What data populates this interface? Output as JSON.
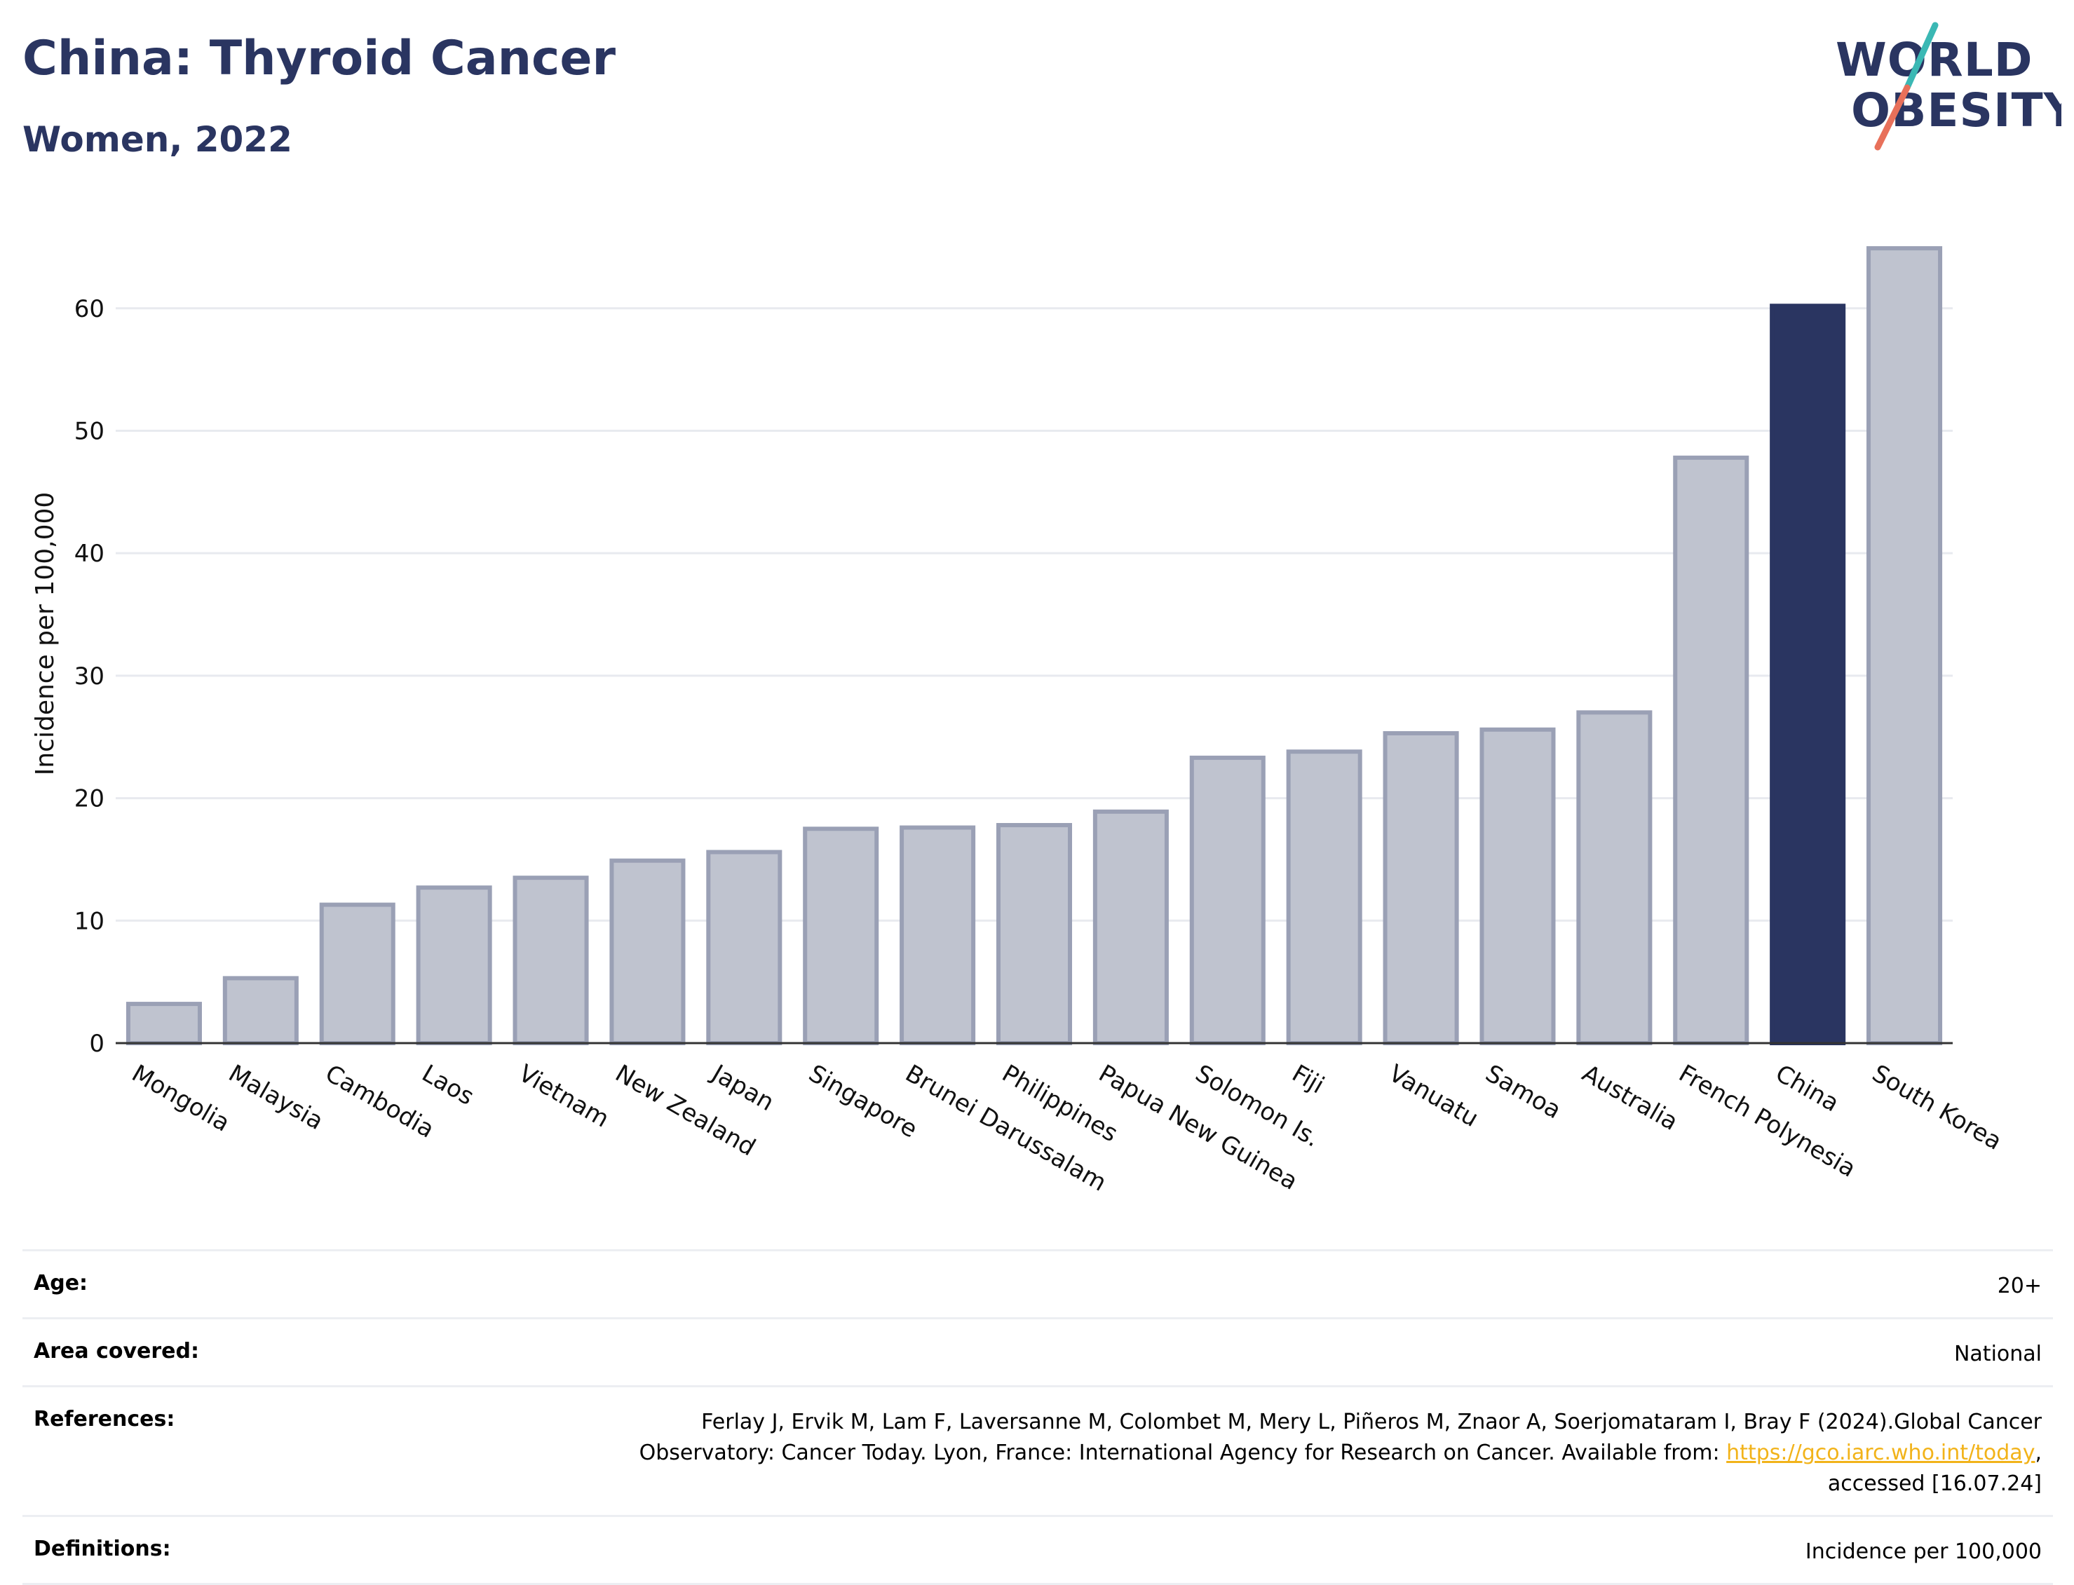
{
  "header": {
    "title": "China: Thyroid Cancer",
    "subtitle": "Women, 2022"
  },
  "logo": {
    "line1": "WORLD",
    "line2": "OBESITY",
    "colors": {
      "text": "#2a3561",
      "slash_top": "#3bb8b4",
      "slash_bottom": "#e8705a"
    }
  },
  "chart_data": {
    "type": "bar",
    "title": "China: Thyroid Cancer",
    "subtitle": "Women, 2022",
    "ylabel": "Incidence per 100,000",
    "xlabel": "",
    "ylim": [
      0,
      68
    ],
    "yticks": [
      0,
      10,
      20,
      30,
      40,
      50,
      60
    ],
    "grid": true,
    "highlight": "China",
    "colors": {
      "bar": "#bfc3cf",
      "bar_edge": "#9aa0b5",
      "highlight": "#2a3561"
    },
    "categories": [
      "Mongolia",
      "Malaysia",
      "Cambodia",
      "Laos",
      "Vietnam",
      "New Zealand",
      "Japan",
      "Singapore",
      "Brunei Darussalam",
      "Philippines",
      "Papua New Guinea",
      "Solomon Is.",
      "Fiji",
      "Vanuatu",
      "Samoa",
      "Australia",
      "French Polynesia",
      "China",
      "South Korea"
    ],
    "values": [
      3.2,
      5.3,
      11.3,
      12.7,
      13.5,
      14.9,
      15.6,
      17.5,
      17.6,
      17.8,
      18.9,
      23.3,
      23.8,
      25.3,
      25.6,
      27.0,
      47.8,
      60.2,
      64.9
    ]
  },
  "meta": {
    "age_label": "Age:",
    "age_value": "20+",
    "area_label": "Area covered:",
    "area_value": "National",
    "refs_label": "References:",
    "refs_line1": "Ferlay J, Ervik M, Lam F, Laversanne M, Colombet M, Mery L, Piñeros M, Znaor A, Soerjomataram I, Bray F (2024).Global Cancer",
    "refs_line2": "Observatory: Cancer Today. Lyon, France: International Agency for Research on Cancer. Available from: ",
    "refs_link": "https://gco.iarc.who.int/today",
    "refs_line2_end": ",",
    "refs_line3": "accessed [16.07.24]",
    "defs_label": "Definitions:",
    "defs_value": "Incidence per 100,000"
  }
}
